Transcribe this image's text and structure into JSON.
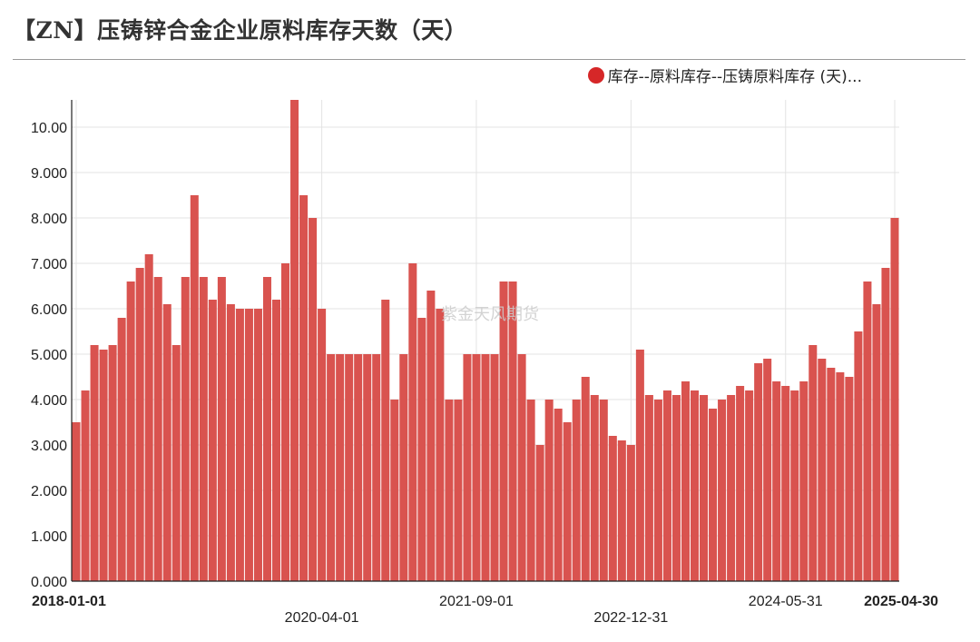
{
  "title": "【ZN】压铸锌合金企业原料库存天数（天）",
  "watermark": "紫金天风期货",
  "legend": {
    "label": "库存--原料库存--压铸原料库存 (天)...",
    "color": "#d62728"
  },
  "chart_data": {
    "type": "bar",
    "title": "【ZN】压铸锌合金企业原料库存天数（天）",
    "series": [
      {
        "name": "库存--原料库存--压铸原料库存 (天)...",
        "color": "#d9534f",
        "values": [
          3.5,
          4.2,
          5.2,
          5.1,
          5.2,
          5.8,
          6.6,
          6.9,
          7.2,
          6.7,
          6.1,
          5.2,
          6.7,
          8.5,
          6.7,
          6.2,
          6.7,
          6.1,
          6.0,
          6.0,
          6.0,
          6.7,
          6.2,
          7.0,
          10.6,
          8.5,
          8.0,
          6.0,
          5.0,
          5.0,
          5.0,
          5.0,
          5.0,
          5.0,
          6.2,
          4.0,
          5.0,
          7.0,
          5.8,
          6.4,
          6.0,
          4.0,
          4.0,
          5.0,
          5.0,
          5.0,
          5.0,
          6.6,
          6.6,
          5.0,
          4.0,
          3.0,
          4.0,
          3.8,
          3.5,
          4.0,
          4.5,
          4.1,
          4.0,
          3.2,
          3.1,
          3.0,
          5.1,
          4.1,
          4.0,
          4.2,
          4.1,
          4.4,
          4.2,
          4.1,
          3.8,
          4.0,
          4.1,
          4.3,
          4.2,
          4.8,
          4.9,
          4.4,
          4.3,
          4.2,
          4.4,
          5.2,
          4.9,
          4.7,
          4.6,
          4.5,
          5.5,
          6.6,
          6.1,
          6.9,
          8.0
        ]
      }
    ],
    "x_tick_labels": [
      {
        "label": "2018-01-01",
        "index": 0,
        "row": 0,
        "bold": true
      },
      {
        "label": "2020-04-01",
        "index": 27,
        "row": 1,
        "bold": false
      },
      {
        "label": "2021-09-01",
        "index": 44,
        "row": 0,
        "bold": false
      },
      {
        "label": "2022-12-31",
        "index": 61,
        "row": 1,
        "bold": false
      },
      {
        "label": "2024-05-31",
        "index": 78,
        "row": 0,
        "bold": false
      },
      {
        "label": "2025-04-30",
        "index": 90,
        "row": 0,
        "bold": true
      }
    ],
    "y_ticks": [
      "0.000",
      "1.000",
      "2.000",
      "3.000",
      "4.000",
      "5.000",
      "6.000",
      "7.000",
      "8.000",
      "9.000",
      "10.00"
    ],
    "ylim": [
      0,
      10.6
    ],
    "grid": true,
    "legend_position": "top-right"
  }
}
